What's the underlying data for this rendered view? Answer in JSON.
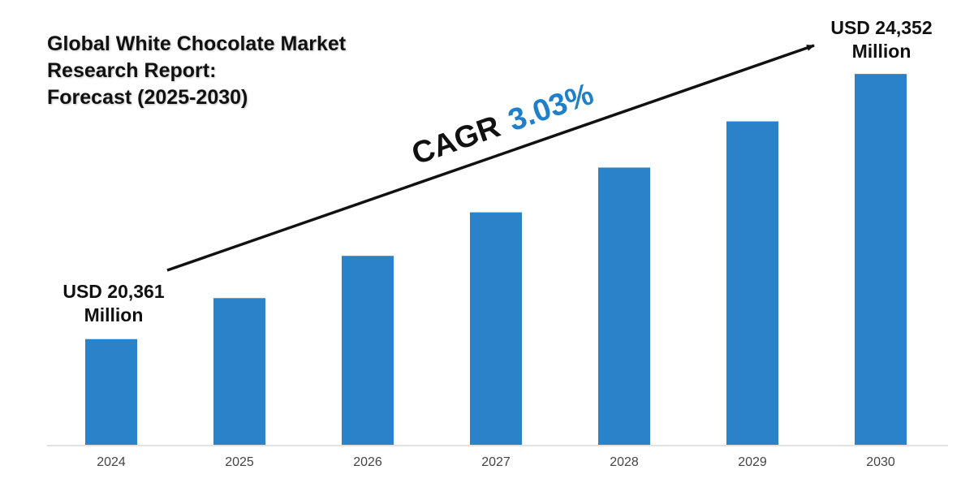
{
  "title_lines": [
    "Global White Chocolate Market",
    "Research Report:",
    "Forecast (2025-2030)"
  ],
  "cagr": {
    "label": "CAGR",
    "value": "3.03%"
  },
  "annotations": {
    "start_value": "USD 20,361",
    "start_unit": "Million",
    "end_value": "USD 24,352",
    "end_unit": "Million"
  },
  "colors": {
    "bar": "#2a82c9",
    "cagr_value": "#1f7fc8",
    "text": "#111111",
    "axis_line": "#d9d9d9",
    "tick_label": "#444444"
  },
  "chart_data": {
    "type": "bar",
    "categories": [
      "2024",
      "2025",
      "2026",
      "2027",
      "2028",
      "2029",
      "2030"
    ],
    "values": [
      20361,
      20978,
      21614,
      22269,
      22943,
      23638,
      24352
    ],
    "title": "Global White Chocolate Market Research Report: Forecast (2025-2030)",
    "xlabel": "",
    "ylabel": "",
    "ylim": [
      18770,
      24610
    ],
    "grid": false,
    "legend": "none",
    "arrow": "trend arrow from first bar to last bar"
  }
}
